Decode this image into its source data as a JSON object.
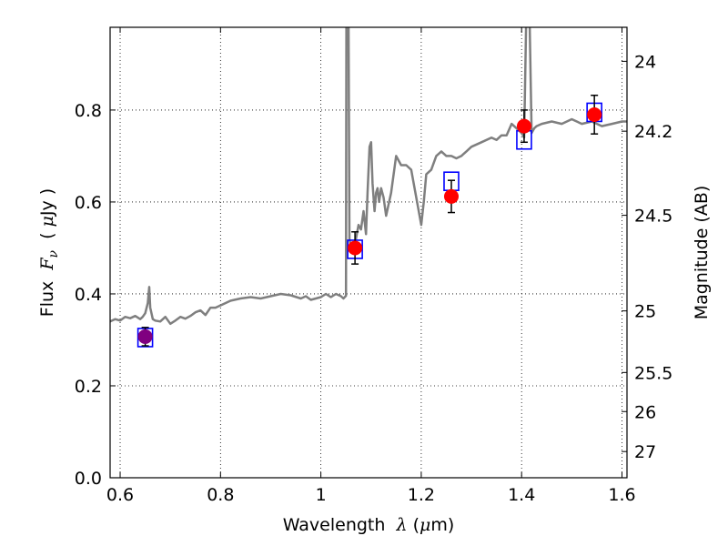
{
  "chart_data": {
    "type": "scatter",
    "xlabel_parts": [
      "Wavelength  ",
      "λ",
      " (",
      "μ",
      "m)"
    ],
    "ylabel_parts": [
      "Flux  ",
      "F",
      "ν",
      "  ( ",
      "μ",
      "Jy )"
    ],
    "y2label": "Magnitude (AB)",
    "xlim": [
      0.58,
      1.61
    ],
    "ylim": [
      0.0,
      0.98
    ],
    "grid": true,
    "x_ticks": [
      0.6,
      0.8,
      1.0,
      1.2,
      1.4,
      1.6
    ],
    "x_tick_labels": [
      "0.6",
      "0.8",
      "1",
      "1.2",
      "1.4",
      "1.6"
    ],
    "y_ticks": [
      0.0,
      0.2,
      0.4,
      0.6,
      0.8
    ],
    "y_tick_labels": [
      "0.0",
      "0.2",
      "0.4",
      "0.6",
      "0.8"
    ],
    "y2_ticks": [
      {
        "label": "24",
        "flux": 0.906
      },
      {
        "label": "24.2",
        "flux": 0.754
      },
      {
        "label": "24.5",
        "flux": 0.571
      },
      {
        "label": "25",
        "flux": 0.363
      },
      {
        "label": "25.5",
        "flux": 0.229
      },
      {
        "label": "26",
        "flux": 0.144
      },
      {
        "label": "27",
        "flux": 0.057
      }
    ],
    "series": [
      {
        "kind": "line",
        "color": "#7f7f7f",
        "x": [
          0.58,
          0.59,
          0.6,
          0.61,
          0.62,
          0.63,
          0.64,
          0.645,
          0.65,
          0.655,
          0.658,
          0.66,
          0.665,
          0.67,
          0.68,
          0.69,
          0.7,
          0.71,
          0.72,
          0.73,
          0.74,
          0.75,
          0.76,
          0.77,
          0.78,
          0.79,
          0.8,
          0.82,
          0.84,
          0.86,
          0.88,
          0.9,
          0.92,
          0.94,
          0.96,
          0.97,
          0.98,
          0.99,
          1.0,
          1.01,
          1.02,
          1.03,
          1.04,
          1.045,
          1.05,
          1.051,
          1.055,
          1.057,
          1.06,
          1.065,
          1.07,
          1.075,
          1.08,
          1.085,
          1.09,
          1.093,
          1.097,
          1.1,
          1.103,
          1.107,
          1.11,
          1.113,
          1.116,
          1.12,
          1.125,
          1.13,
          1.14,
          1.15,
          1.16,
          1.17,
          1.18,
          1.19,
          1.2,
          1.205,
          1.21,
          1.22,
          1.23,
          1.24,
          1.25,
          1.26,
          1.27,
          1.28,
          1.29,
          1.3,
          1.32,
          1.34,
          1.35,
          1.36,
          1.37,
          1.38,
          1.39,
          1.4,
          1.405,
          1.41,
          1.415,
          1.42,
          1.425,
          1.43,
          1.44,
          1.46,
          1.48,
          1.5,
          1.52,
          1.54,
          1.56,
          1.58,
          1.6,
          1.61
        ],
        "y": [
          0.34,
          0.345,
          0.342,
          0.35,
          0.347,
          0.352,
          0.345,
          0.35,
          0.358,
          0.38,
          0.415,
          0.37,
          0.345,
          0.342,
          0.34,
          0.35,
          0.335,
          0.342,
          0.35,
          0.346,
          0.352,
          0.36,
          0.364,
          0.354,
          0.37,
          0.37,
          0.375,
          0.385,
          0.39,
          0.393,
          0.39,
          0.395,
          0.4,
          0.397,
          0.39,
          0.395,
          0.387,
          0.39,
          0.393,
          0.4,
          0.393,
          0.4,
          0.395,
          0.39,
          0.396,
          1.05,
          1.05,
          0.52,
          0.5,
          0.49,
          0.52,
          0.55,
          0.54,
          0.58,
          0.53,
          0.62,
          0.72,
          0.73,
          0.64,
          0.58,
          0.62,
          0.63,
          0.6,
          0.63,
          0.61,
          0.57,
          0.62,
          0.7,
          0.68,
          0.68,
          0.67,
          0.61,
          0.55,
          0.6,
          0.66,
          0.67,
          0.7,
          0.71,
          0.7,
          0.7,
          0.695,
          0.7,
          0.71,
          0.72,
          0.73,
          0.74,
          0.735,
          0.745,
          0.745,
          0.77,
          0.76,
          0.75,
          0.74,
          1.05,
          1.05,
          0.75,
          0.76,
          0.765,
          0.77,
          0.775,
          0.77,
          0.78,
          0.77,
          0.775,
          0.765,
          0.77,
          0.775,
          0.775
        ]
      },
      {
        "kind": "boxes",
        "color": "#0000ff",
        "x": [
          0.65,
          1.068,
          1.26,
          1.405,
          1.545
        ],
        "y": [
          0.305,
          0.497,
          0.645,
          0.735,
          0.795
        ]
      },
      {
        "kind": "points",
        "color": "#ff0000",
        "x": [
          1.068,
          1.26,
          1.405,
          1.545
        ],
        "y": [
          0.5,
          0.612,
          0.765,
          0.79
        ],
        "yerr": [
          0.035,
          0.035,
          0.035,
          0.042
        ]
      },
      {
        "kind": "points",
        "color": "#800080",
        "x": [
          0.65
        ],
        "y": [
          0.307
        ],
        "yerr": [
          0.02
        ]
      }
    ]
  }
}
